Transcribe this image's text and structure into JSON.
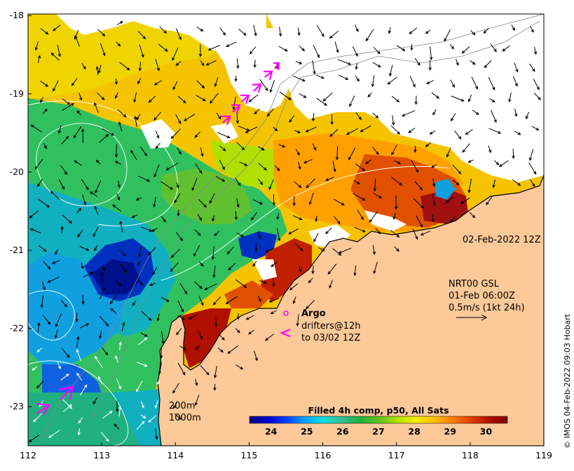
{
  "map": {
    "latitudes": [
      -18,
      -19,
      -20,
      -21,
      -22,
      -23
    ],
    "longitudes": [
      112,
      113,
      114,
      115,
      116,
      117,
      118,
      119
    ],
    "lat_range": [
      -23.5,
      -17.98
    ],
    "lon_range": [
      112,
      119
    ]
  },
  "annotations": {
    "date": "02-Feb-2022 12Z",
    "current_source": "NRT00 GSL",
    "current_time": "01-Feb 06:00Z",
    "current_scale": "0.5m/s (1kt 24h)",
    "argo_label": "Argo",
    "drifters_line1": "drifters@12h",
    "drifters_line2": "to 03/02 12Z",
    "depth_200": "200m",
    "depth_1000": "1000m"
  },
  "colorbar": {
    "title": "Filled 4h comp, p50, All Sats",
    "ticks": [
      24,
      25,
      26,
      27,
      28,
      29,
      30
    ],
    "range": [
      23.4,
      30.6
    ],
    "colors": [
      "#00007f",
      "#0000d0",
      "#0040ff",
      "#00a0ff",
      "#10e0e0",
      "#30c090",
      "#20b040",
      "#60c020",
      "#b0e000",
      "#f0f000",
      "#ffc000",
      "#ff8000",
      "#e04000",
      "#b01000",
      "#800000"
    ]
  },
  "credit": "© IMOS 04-Feb-2022 09:03 Hobart",
  "colors": {
    "land": "#fdc999",
    "coast": "#000000",
    "drifter": "#ff00ff",
    "contour": "#ffffff"
  }
}
